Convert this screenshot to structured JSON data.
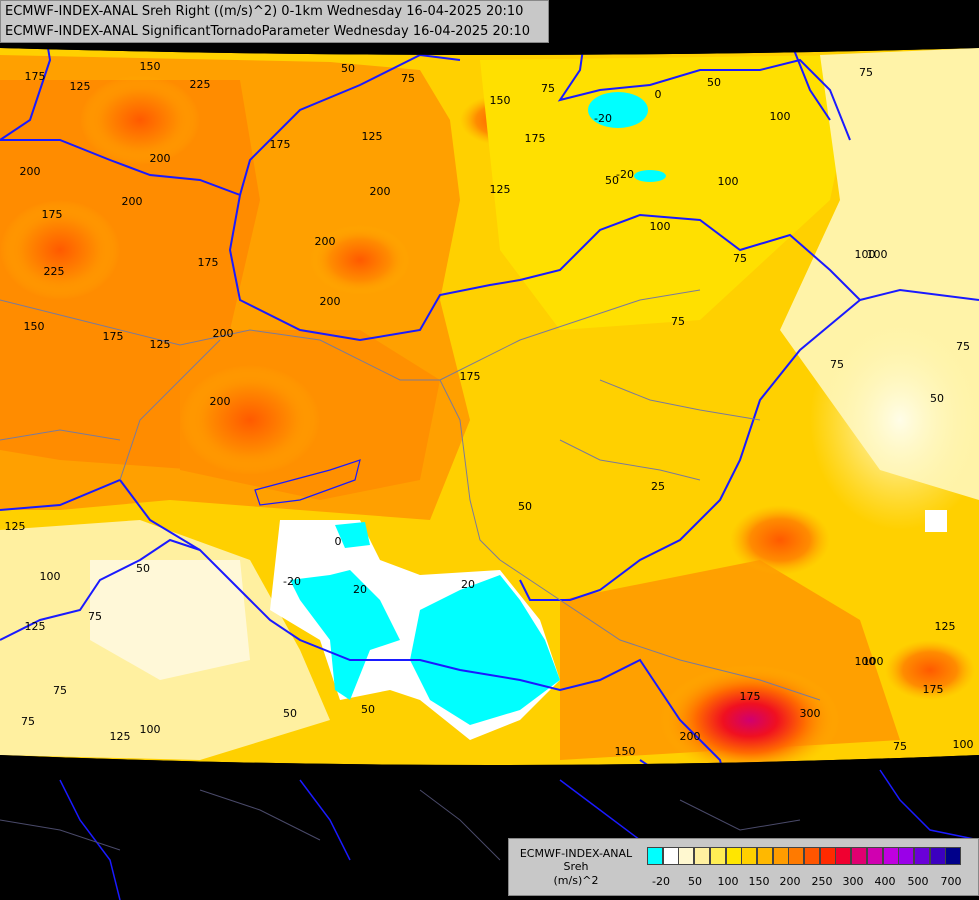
{
  "title": {
    "line1": "ECMWF-INDEX-ANAL Sreh Right ((m/s)^2) 0-1km Wednesday 16-04-2025 20:10",
    "line2": "ECMWF-INDEX-ANAL SignificantTornadoParameter Wednesday 16-04-2025 20:10"
  },
  "legend": {
    "model": "ECMWF-INDEX-ANAL",
    "parameter": "Sreh",
    "unit": "(m/s)^2",
    "ticks": [
      "-20",
      "50",
      "100",
      "150",
      "200",
      "250",
      "300",
      "400",
      "500",
      "700"
    ],
    "colors": [
      "#00ffff",
      "#ffffff",
      "#fff8d0",
      "#fff0a0",
      "#ffee55",
      "#ffe600",
      "#ffd000",
      "#ffb800",
      "#ff9c00",
      "#ff7a00",
      "#ff5500",
      "#ff2a00",
      "#f00030",
      "#e00070",
      "#d000b0",
      "#c000e0",
      "#9a00e8",
      "#6a00d8",
      "#3c00c0",
      "#00008a"
    ]
  },
  "contour_labels": [
    "175",
    "125",
    "150",
    "225",
    "50",
    "75",
    "75",
    "0",
    "50",
    "-20",
    "100",
    "75",
    "150",
    "175",
    "125",
    "200",
    "200",
    "200",
    "175",
    "225",
    "200",
    "175",
    "125",
    "200",
    "150",
    "175",
    "200",
    "200",
    "175",
    "125",
    "100",
    "100",
    "75",
    "75",
    "100",
    "50",
    "75",
    "50",
    "75",
    "200",
    "175",
    "50",
    "-20",
    "0",
    "-20",
    "20",
    "20",
    "125",
    "100",
    "50",
    "125",
    "75",
    "50",
    "100",
    "75",
    "125",
    "75",
    "100",
    "50",
    "100",
    "150",
    "200",
    "175",
    "300",
    "125",
    "100",
    "175",
    "75",
    "100",
    "25"
  ],
  "colors": {
    "border": "#1a1aff",
    "river": "#7a7a9a"
  }
}
